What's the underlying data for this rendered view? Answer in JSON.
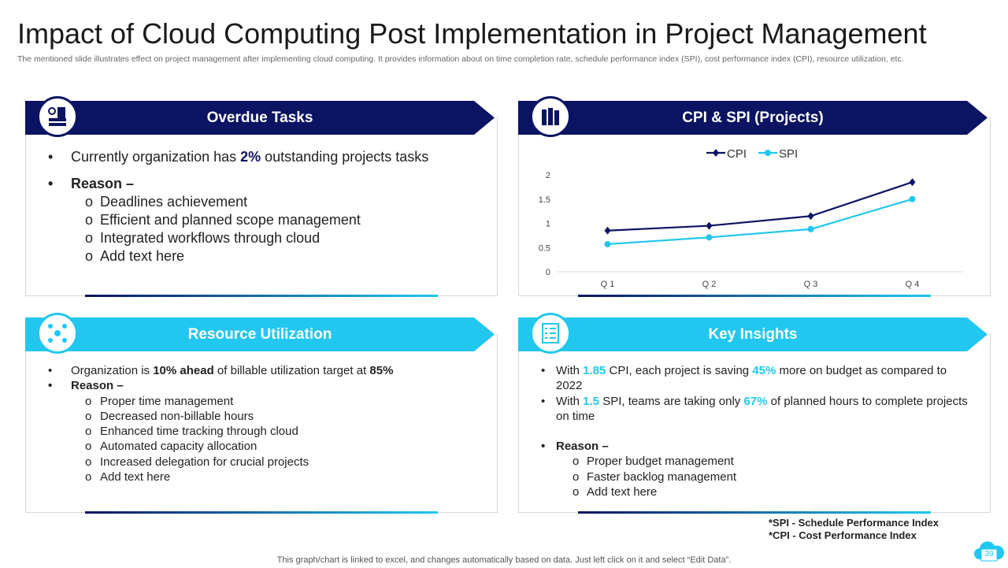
{
  "title": "Impact of Cloud Computing Post Implementation in Project Management",
  "subtitle": "The mentioned slide illustrates effect on project management after implementing cloud computing. It provides information about on time completion rate, schedule performance index (SPI), cost performance index (CPI), resource utilization, etc.",
  "overdue": {
    "heading": "Overdue Tasks",
    "line1_pre": "Currently organization has ",
    "line1_bold": "2%",
    "line1_post": " outstanding projects tasks",
    "reason": "Reason –",
    "items": [
      "Deadlines achievement",
      "Efficient and planned scope management",
      "Integrated workflows through cloud",
      "Add text here"
    ]
  },
  "cpi_spi": {
    "heading": "CPI & SPI (Projects)"
  },
  "resource": {
    "heading": "Resource Utilization",
    "l1a": "Organization is ",
    "l1b": "10% ahead",
    "l1c": " of billable utilization target at ",
    "l1d": "85%",
    "reason": "Reason –",
    "items": [
      "Proper time management",
      "Decreased non-billable hours",
      "Enhanced time tracking through  cloud",
      "Automated capacity allocation",
      "Increased delegation for crucial projects",
      "Add text here"
    ]
  },
  "insights": {
    "heading": "Key Insights",
    "i1a": "With ",
    "i1b": "1.85",
    "i1c": " CPI, each project is saving ",
    "i1d": "45%",
    "i1e": " more on budget as compared to 2022",
    "i2a": "With ",
    "i2b": "1.5",
    "i2c": " SPI, teams are taking only ",
    "i2d": "67%",
    "i2e": " of planned hours to complete projects on time",
    "reason": "Reason –",
    "items": [
      "Proper budget management",
      "Faster backlog management",
      "Add text here"
    ]
  },
  "notes": [
    "*SPI - Schedule Performance Index",
    "*CPI - Cost Performance Index"
  ],
  "footer": "This graph/chart is linked to excel,  and changes automatically based on data. Just left click on it and select “Edit Data”.",
  "page_number": "39",
  "colors": {
    "navy": "#0b1462",
    "cyan": "#22c7f0"
  },
  "chart_data": {
    "type": "line",
    "categories": [
      "Q1",
      "Q2",
      "Q3",
      "Q4"
    ],
    "series": [
      {
        "name": "CPI",
        "values": [
          0.85,
          0.95,
          1.15,
          1.85
        ],
        "color": "#0b1462",
        "marker": "diamond"
      },
      {
        "name": "SPI",
        "values": [
          0.57,
          0.71,
          0.88,
          1.5
        ],
        "color": "#22c7f0",
        "marker": "circle"
      }
    ],
    "ylim": [
      0,
      2
    ],
    "yticks": [
      "0",
      "0.5",
      "1",
      "1.5",
      "2"
    ],
    "xtick_labels": [
      "Q 1",
      "Q 2",
      "Q 3",
      "Q 4"
    ],
    "grid": false,
    "legend": "top"
  }
}
